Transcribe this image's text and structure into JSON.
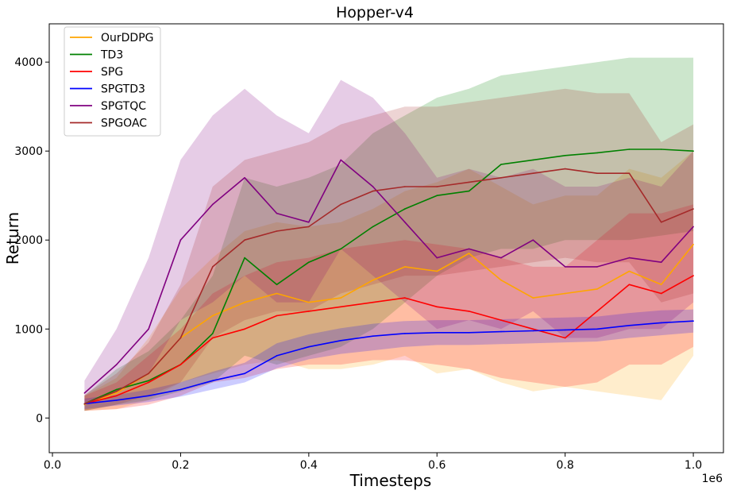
{
  "chart_data": {
    "type": "line",
    "title": "Hopper-v4",
    "xlabel": "Timesteps",
    "ylabel": "Return",
    "x_offset_label": "1e6",
    "xlim": [
      -0.005,
      1.047
    ],
    "ylim": [
      -390,
      4430
    ],
    "xticks": [
      0.0,
      0.2,
      0.4,
      0.6,
      0.8,
      1.0
    ],
    "xtick_labels": [
      "0.0",
      "0.2",
      "0.4",
      "0.6",
      "0.8",
      "1.0"
    ],
    "yticks": [
      0,
      1000,
      2000,
      3000,
      4000
    ],
    "ytick_labels": [
      "0",
      "1000",
      "2000",
      "3000",
      "4000"
    ],
    "grid": false,
    "legend_position": "top-left",
    "x": [
      0.05,
      0.1,
      0.15,
      0.2,
      0.25,
      0.3,
      0.35,
      0.4,
      0.45,
      0.5,
      0.55,
      0.6,
      0.65,
      0.7,
      0.75,
      0.8,
      0.85,
      0.9,
      0.95,
      1.0
    ],
    "series": [
      {
        "name": "OurDDPG",
        "color": "#FFA500",
        "values": [
          150,
          280,
          500,
          900,
          1150,
          1300,
          1400,
          1300,
          1350,
          1550,
          1700,
          1650,
          1850,
          1550,
          1350,
          1400,
          1450,
          1650,
          1500,
          1950
        ],
        "lower": [
          80,
          100,
          200,
          400,
          500,
          600,
          650,
          550,
          550,
          600,
          700,
          500,
          550,
          400,
          300,
          350,
          300,
          250,
          200,
          700
        ],
        "upper": [
          250,
          450,
          900,
          1450,
          1800,
          2100,
          2200,
          2150,
          2200,
          2350,
          2550,
          2650,
          2800,
          2600,
          2400,
          2500,
          2500,
          2800,
          2700,
          3000
        ]
      },
      {
        "name": "TD3",
        "color": "#008000",
        "values": [
          160,
          320,
          420,
          600,
          950,
          1800,
          1500,
          1750,
          1900,
          2150,
          2350,
          2500,
          2550,
          2850,
          2900,
          2950,
          2980,
          3020,
          3020,
          3000
        ],
        "lower": [
          80,
          150,
          200,
          300,
          400,
          700,
          600,
          700,
          800,
          1000,
          1300,
          1600,
          1800,
          1900,
          1900,
          2000,
          2000,
          2000,
          2050,
          2100
        ],
        "upper": [
          250,
          550,
          750,
          1100,
          1600,
          2700,
          2600,
          2700,
          2850,
          3200,
          3400,
          3600,
          3700,
          3850,
          3900,
          3950,
          4000,
          4050,
          4050,
          4050
        ]
      },
      {
        "name": "SPG",
        "color": "#FF0000",
        "values": [
          160,
          250,
          400,
          600,
          900,
          1000,
          1150,
          1200,
          1250,
          1300,
          1350,
          1250,
          1200,
          1100,
          1000,
          900,
          1200,
          1500,
          1400,
          1600
        ],
        "lower": [
          80,
          100,
          150,
          250,
          400,
          450,
          550,
          600,
          600,
          650,
          650,
          600,
          550,
          450,
          400,
          350,
          400,
          600,
          600,
          800
        ],
        "upper": [
          250,
          400,
          700,
          1000,
          1400,
          1600,
          1750,
          1800,
          1900,
          1950,
          2000,
          1950,
          1900,
          1800,
          1700,
          1700,
          2000,
          2300,
          2300,
          2400
        ]
      },
      {
        "name": "SPGTD3",
        "color": "#0000FF",
        "values": [
          160,
          200,
          250,
          320,
          420,
          500,
          700,
          800,
          870,
          920,
          950,
          960,
          960,
          970,
          980,
          990,
          1000,
          1040,
          1070,
          1090
        ],
        "lower": [
          100,
          140,
          180,
          240,
          320,
          400,
          560,
          660,
          720,
          760,
          800,
          820,
          820,
          830,
          840,
          850,
          860,
          900,
          930,
          960
        ],
        "upper": [
          220,
          260,
          320,
          400,
          520,
          620,
          840,
          940,
          1010,
          1060,
          1090,
          1100,
          1100,
          1110,
          1120,
          1130,
          1140,
          1180,
          1210,
          1220
        ]
      },
      {
        "name": "SPGTQC",
        "color": "#800080",
        "values": [
          280,
          600,
          1000,
          2000,
          2400,
          2700,
          2300,
          2200,
          2900,
          2600,
          2200,
          1800,
          1900,
          1800,
          2000,
          1700,
          1700,
          1800,
          1750,
          2150
        ],
        "lower": [
          150,
          300,
          500,
          1100,
          1300,
          1600,
          1300,
          1300,
          1900,
          1600,
          1300,
          1000,
          1100,
          1000,
          1200,
          900,
          900,
          1000,
          1000,
          1300
        ],
        "upper": [
          420,
          1000,
          1800,
          2900,
          3400,
          3700,
          3400,
          3200,
          3800,
          3600,
          3200,
          2700,
          2800,
          2700,
          2800,
          2600,
          2600,
          2700,
          2600,
          3000
        ]
      },
      {
        "name": "SPGOAC",
        "color": "#A52A2A",
        "values": [
          160,
          300,
          500,
          900,
          1700,
          2000,
          2100,
          2150,
          2400,
          2550,
          2600,
          2600,
          2650,
          2700,
          2750,
          2800,
          2750,
          2750,
          2200,
          2350
        ],
        "lower": [
          80,
          150,
          250,
          400,
          900,
          1100,
          1200,
          1200,
          1400,
          1500,
          1600,
          1600,
          1650,
          1700,
          1750,
          1800,
          1750,
          1750,
          1300,
          1400
        ],
        "upper": [
          260,
          500,
          850,
          1500,
          2600,
          2900,
          3000,
          3100,
          3300,
          3400,
          3500,
          3500,
          3550,
          3600,
          3650,
          3700,
          3650,
          3650,
          3100,
          3300
        ]
      }
    ]
  }
}
